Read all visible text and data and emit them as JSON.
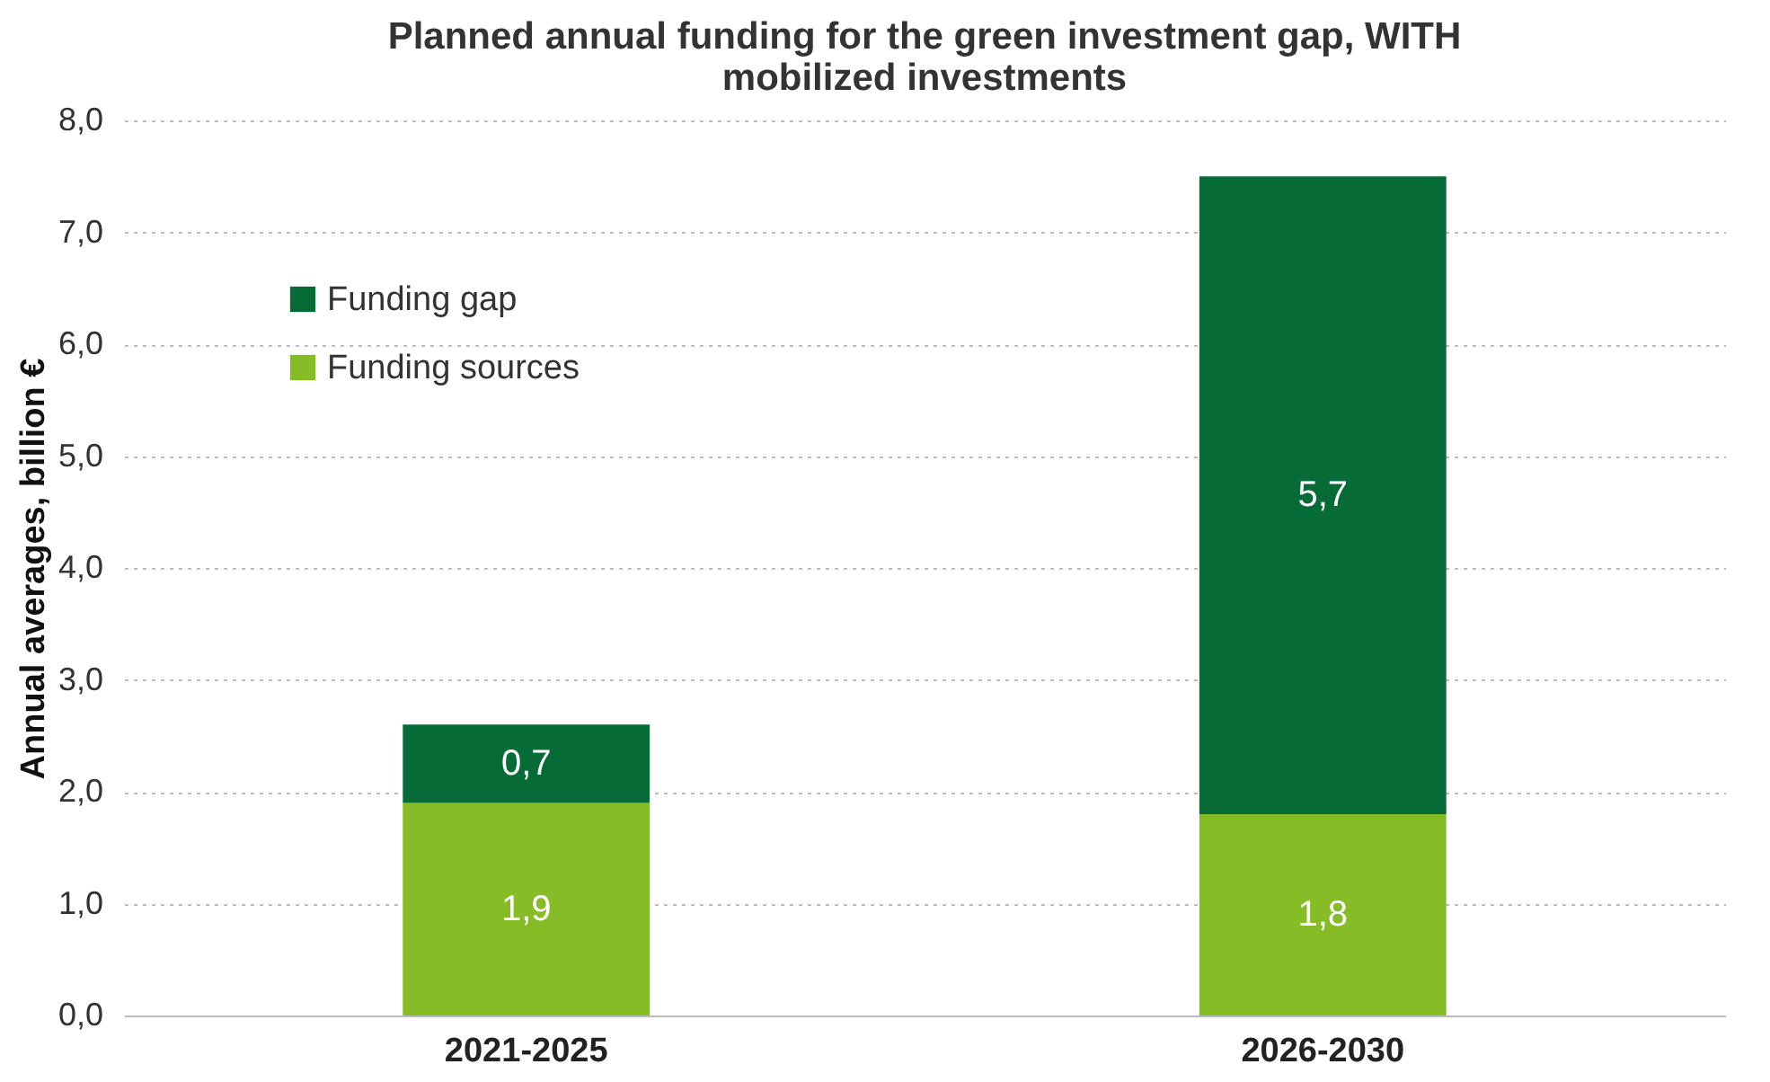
{
  "chart_data": {
    "type": "bar",
    "title": "Planned annual funding for the green investment gap, WITH mobilized investments",
    "ylabel": "Annual averages, billion €",
    "categories": [
      "2021-2025",
      "2026-2030"
    ],
    "stacked": true,
    "series": [
      {
        "name": "Funding sources",
        "color": "#86bc25",
        "values": [
          1.9,
          1.8
        ],
        "value_labels": [
          "1,9",
          "1,8"
        ]
      },
      {
        "name": "Funding gap",
        "color": "#076b38",
        "values": [
          0.7,
          5.7
        ],
        "value_labels": [
          "0,7",
          "5,7"
        ]
      }
    ],
    "ylim": [
      0,
      8
    ],
    "yticks": [
      {
        "value": 0,
        "label": "0,0"
      },
      {
        "value": 1,
        "label": "1,0"
      },
      {
        "value": 2,
        "label": "2,0"
      },
      {
        "value": 3,
        "label": "3,0"
      },
      {
        "value": 4,
        "label": "4,0"
      },
      {
        "value": 5,
        "label": "5,0"
      },
      {
        "value": 6,
        "label": "6,0"
      },
      {
        "value": 7,
        "label": "7,0"
      },
      {
        "value": 8,
        "label": "8,0"
      }
    ],
    "grid": "y",
    "legend": "top left"
  }
}
